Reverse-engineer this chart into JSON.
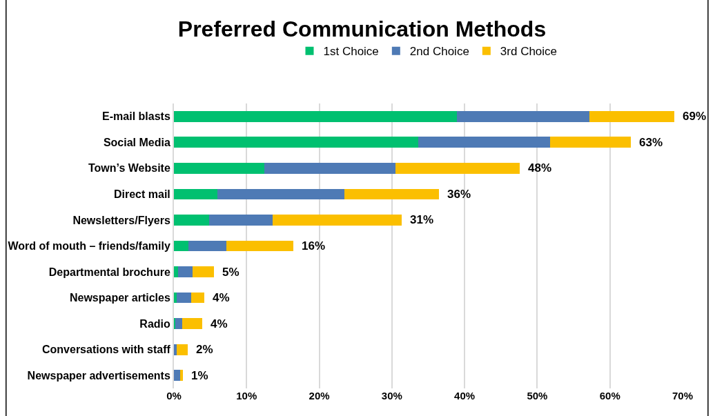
{
  "chart_data": {
    "type": "bar",
    "orientation": "horizontal",
    "stacked": true,
    "title": "Preferred Communication Methods",
    "categories": [
      "E-mail blasts",
      "Social Media",
      "Town’s Website",
      "Direct mail",
      "Newsletters/Flyers",
      "Word of mouth – friends/family",
      "Departmental brochure",
      "Newspaper articles",
      "Radio",
      "Conversations with staff",
      "Newspaper advertisements"
    ],
    "series": [
      {
        "name": "1st Choice",
        "color": "#00c070",
        "values": [
          38.9,
          33.6,
          12.4,
          6.0,
          4.8,
          2.0,
          0.6,
          0.4,
          0.2,
          0,
          0
        ]
      },
      {
        "name": "2nd Choice",
        "color": "#4e7ab5",
        "values": [
          18.3,
          18.2,
          18.1,
          17.5,
          8.8,
          5.2,
          2.0,
          2.0,
          0.9,
          0.4,
          0.9
        ]
      },
      {
        "name": "3rd Choice",
        "color": "#fbbf00",
        "values": [
          11.7,
          11.1,
          17.1,
          13.0,
          17.7,
          9.2,
          2.9,
          1.8,
          2.8,
          1.5,
          0.3
        ]
      }
    ],
    "totals": [
      "69%",
      "63%",
      "48%",
      "36%",
      "31%",
      "16%",
      "5%",
      "4%",
      "4%",
      "2%",
      "1%"
    ],
    "xlim": [
      0,
      70
    ],
    "xticks": [
      {
        "value": 0,
        "label": "0%"
      },
      {
        "value": 10,
        "label": "10%"
      },
      {
        "value": 20,
        "label": "20%"
      },
      {
        "value": 30,
        "label": "30%"
      },
      {
        "value": 40,
        "label": "40%"
      },
      {
        "value": 50,
        "label": "50%"
      },
      {
        "value": 60,
        "label": "60%"
      },
      {
        "value": 70,
        "label": "70%"
      }
    ],
    "grid": "x",
    "legend": "top"
  }
}
